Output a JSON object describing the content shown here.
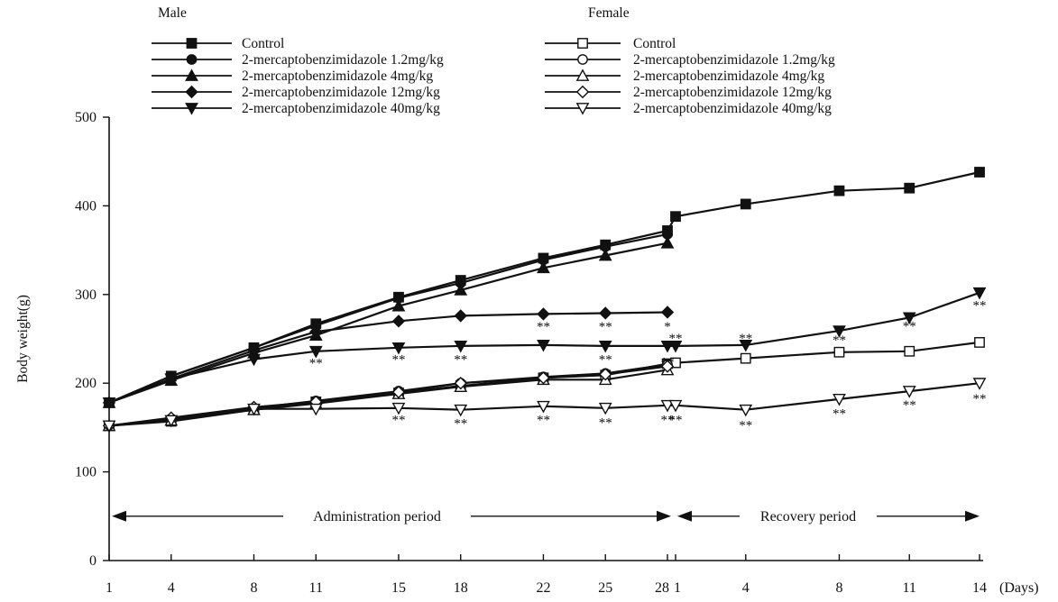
{
  "chart_data": {
    "type": "line",
    "ylabel": "Body weight(g)",
    "ylim": [
      0,
      500
    ],
    "yticks": [
      0,
      100,
      200,
      300,
      400,
      500
    ],
    "x_units": "(Days)",
    "x_admin_days": [
      1,
      4,
      8,
      11,
      15,
      18,
      22,
      25,
      28
    ],
    "x_recovery_days": [
      1,
      4,
      8,
      11,
      14
    ],
    "period_labels": {
      "administration": "Administration period",
      "recovery": "Recovery period"
    },
    "legend_groups": [
      {
        "label": "Male",
        "entries": [
          "Control",
          "2-mercaptobenzimidazole 1.2mg/kg",
          "2-mercaptobenzimidazole 4mg/kg",
          "2-mercaptobenzimidazole 12mg/kg",
          "2-mercaptobenzimidazole 40mg/kg"
        ]
      },
      {
        "label": "Female",
        "entries": [
          "Control",
          "2-mercaptobenzimidazole 1.2mg/kg",
          "2-mercaptobenzimidazole 4mg/kg",
          "2-mercaptobenzimidazole 12mg/kg",
          "2-mercaptobenzimidazole 40mg/kg"
        ]
      }
    ],
    "series": [
      {
        "sex": "Male",
        "name": "Control",
        "marker": "square",
        "filled": true,
        "admin": [
          178,
          208,
          240,
          267,
          297,
          316,
          341,
          356,
          372
        ],
        "recovery": [
          388,
          402,
          417,
          420,
          438
        ]
      },
      {
        "sex": "Male",
        "name": "2-mercaptobenzimidazole 1.2mg/kg",
        "marker": "circle",
        "filled": true,
        "admin": [
          178,
          208,
          240,
          265,
          296,
          313,
          339,
          354,
          368
        ]
      },
      {
        "sex": "Male",
        "name": "2-mercaptobenzimidazole 4mg/kg",
        "marker": "triangle-up",
        "filled": true,
        "admin": [
          178,
          203,
          234,
          254,
          287,
          305,
          330,
          344,
          358
        ]
      },
      {
        "sex": "Male",
        "name": "2-mercaptobenzimidazole 12mg/kg",
        "marker": "diamond",
        "filled": true,
        "admin": [
          178,
          205,
          237,
          258,
          270,
          276,
          278,
          279,
          280
        ]
      },
      {
        "sex": "Male",
        "name": "2-mercaptobenzimidazole 40mg/kg",
        "marker": "triangle-down",
        "filled": true,
        "admin": [
          178,
          205,
          227,
          236,
          240,
          242,
          243,
          242,
          242
        ],
        "recovery": [
          242,
          243,
          259,
          274,
          302
        ]
      },
      {
        "sex": "Female",
        "name": "Control",
        "marker": "square",
        "filled": false,
        "admin": [
          152,
          157,
          170,
          179,
          189,
          197,
          206,
          209,
          222
        ],
        "recovery": [
          223,
          228,
          235,
          236,
          246
        ]
      },
      {
        "sex": "Female",
        "name": "2-mercaptobenzimidazole 1.2mg/kg",
        "marker": "circle",
        "filled": false,
        "admin": [
          152,
          160,
          172,
          180,
          191,
          200,
          207,
          211,
          221
        ]
      },
      {
        "sex": "Female",
        "name": "2-mercaptobenzimidazole 4mg/kg",
        "marker": "triangle-up",
        "filled": false,
        "admin": [
          152,
          158,
          170,
          177,
          188,
          196,
          204,
          204,
          215
        ]
      },
      {
        "sex": "Female",
        "name": "2-mercaptobenzimidazole 12mg/kg",
        "marker": "diamond",
        "filled": false,
        "admin": [
          152,
          161,
          173,
          179,
          190,
          200,
          206,
          210,
          219
        ]
      },
      {
        "sex": "Female",
        "name": "2-mercaptobenzimidazole 40mg/kg",
        "marker": "triangle-down",
        "filled": false,
        "admin": [
          152,
          158,
          171,
          171,
          172,
          170,
          174,
          172,
          175
        ],
        "recovery": [
          175,
          170,
          182,
          191,
          200
        ]
      }
    ],
    "annotations": [
      {
        "text": "**",
        "period": "admin",
        "day": 11,
        "value": 224
      },
      {
        "text": "**",
        "period": "admin",
        "day": 15,
        "value": 228
      },
      {
        "text": "**",
        "period": "admin",
        "day": 18,
        "value": 228
      },
      {
        "text": "**",
        "period": "admin",
        "day": 22,
        "value": 265
      },
      {
        "text": "**",
        "period": "admin",
        "day": 25,
        "value": 265
      },
      {
        "text": "**",
        "period": "admin",
        "day": 25,
        "value": 228
      },
      {
        "text": "*",
        "period": "admin",
        "day": 28,
        "value": 265
      },
      {
        "text": "**",
        "period": "admin",
        "day": 28,
        "value": 225
      },
      {
        "text": "**",
        "period": "recovery",
        "day": 1,
        "value": 252
      },
      {
        "text": "**",
        "period": "recovery",
        "day": 4,
        "value": 252
      },
      {
        "text": "**",
        "period": "recovery",
        "day": 8,
        "value": 250
      },
      {
        "text": "**",
        "period": "recovery",
        "day": 11,
        "value": 266
      },
      {
        "text": "**",
        "period": "recovery",
        "day": 14,
        "value": 289
      },
      {
        "text": "**",
        "period": "admin",
        "day": 15,
        "value": 160
      },
      {
        "text": "**",
        "period": "admin",
        "day": 18,
        "value": 156
      },
      {
        "text": "**",
        "period": "admin",
        "day": 22,
        "value": 160
      },
      {
        "text": "**",
        "period": "admin",
        "day": 25,
        "value": 157
      },
      {
        "text": "**",
        "period": "admin",
        "day": 28,
        "value": 160
      },
      {
        "text": "**",
        "period": "recovery",
        "day": 1,
        "value": 160
      },
      {
        "text": "**",
        "period": "recovery",
        "day": 4,
        "value": 154
      },
      {
        "text": "**",
        "period": "recovery",
        "day": 8,
        "value": 167
      },
      {
        "text": "**",
        "period": "recovery",
        "day": 11,
        "value": 177
      },
      {
        "text": "**",
        "period": "recovery",
        "day": 14,
        "value": 184
      }
    ]
  }
}
